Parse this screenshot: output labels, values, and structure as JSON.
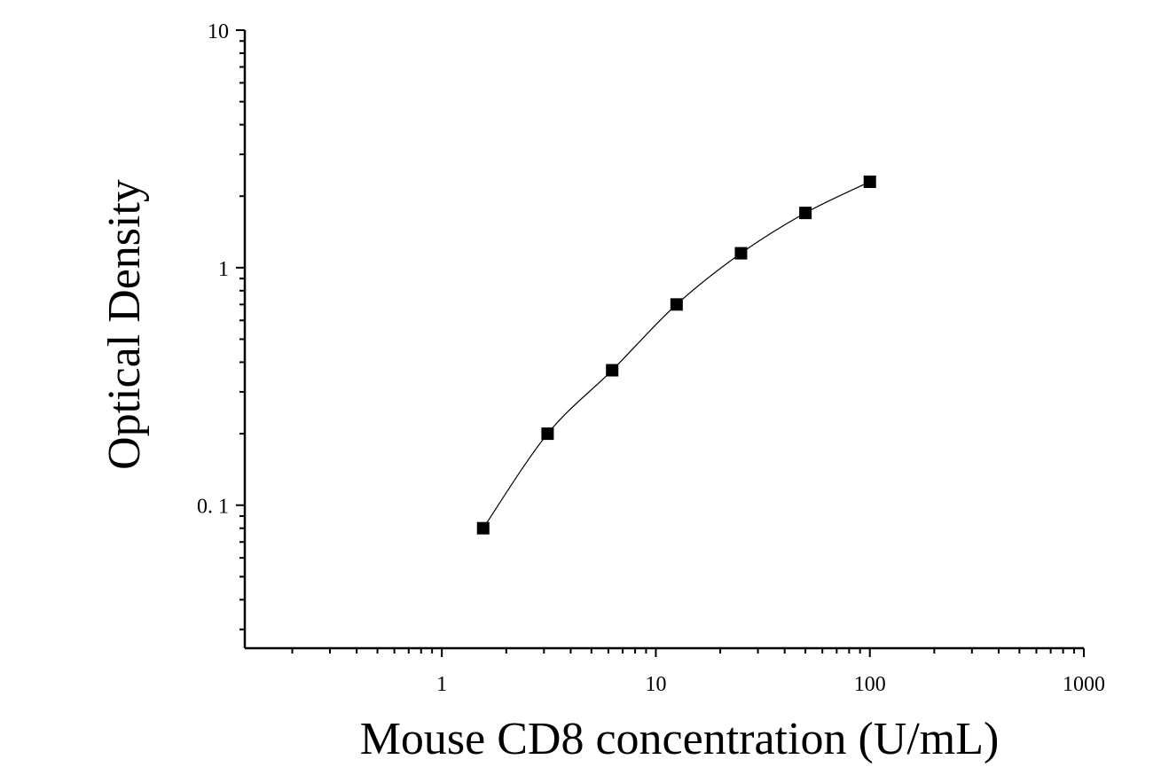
{
  "chart_data": {
    "type": "scatter",
    "title": "",
    "xlabel": "Mouse CD8 concentration (U/mL)",
    "ylabel": "Optical Density",
    "x_scale": "log",
    "y_scale": "log",
    "xlim": [
      0.12,
      1000
    ],
    "ylim": [
      0.025,
      10
    ],
    "x_ticks": [
      1,
      10,
      100,
      1000
    ],
    "x_tick_labels": [
      "1",
      "10",
      "100",
      "1000"
    ],
    "y_ticks": [
      0.1,
      1,
      10
    ],
    "y_tick_labels": [
      "0. 1",
      "1",
      "10"
    ],
    "grid": false,
    "legend": "none",
    "series": [
      {
        "x": [
          1.56,
          3.12,
          6.25,
          12.5,
          25,
          50,
          100
        ],
        "y": [
          0.08,
          0.2,
          0.37,
          0.7,
          1.15,
          1.7,
          2.3
        ],
        "marker": "square",
        "color": "#000000",
        "fit_line": true
      }
    ]
  }
}
